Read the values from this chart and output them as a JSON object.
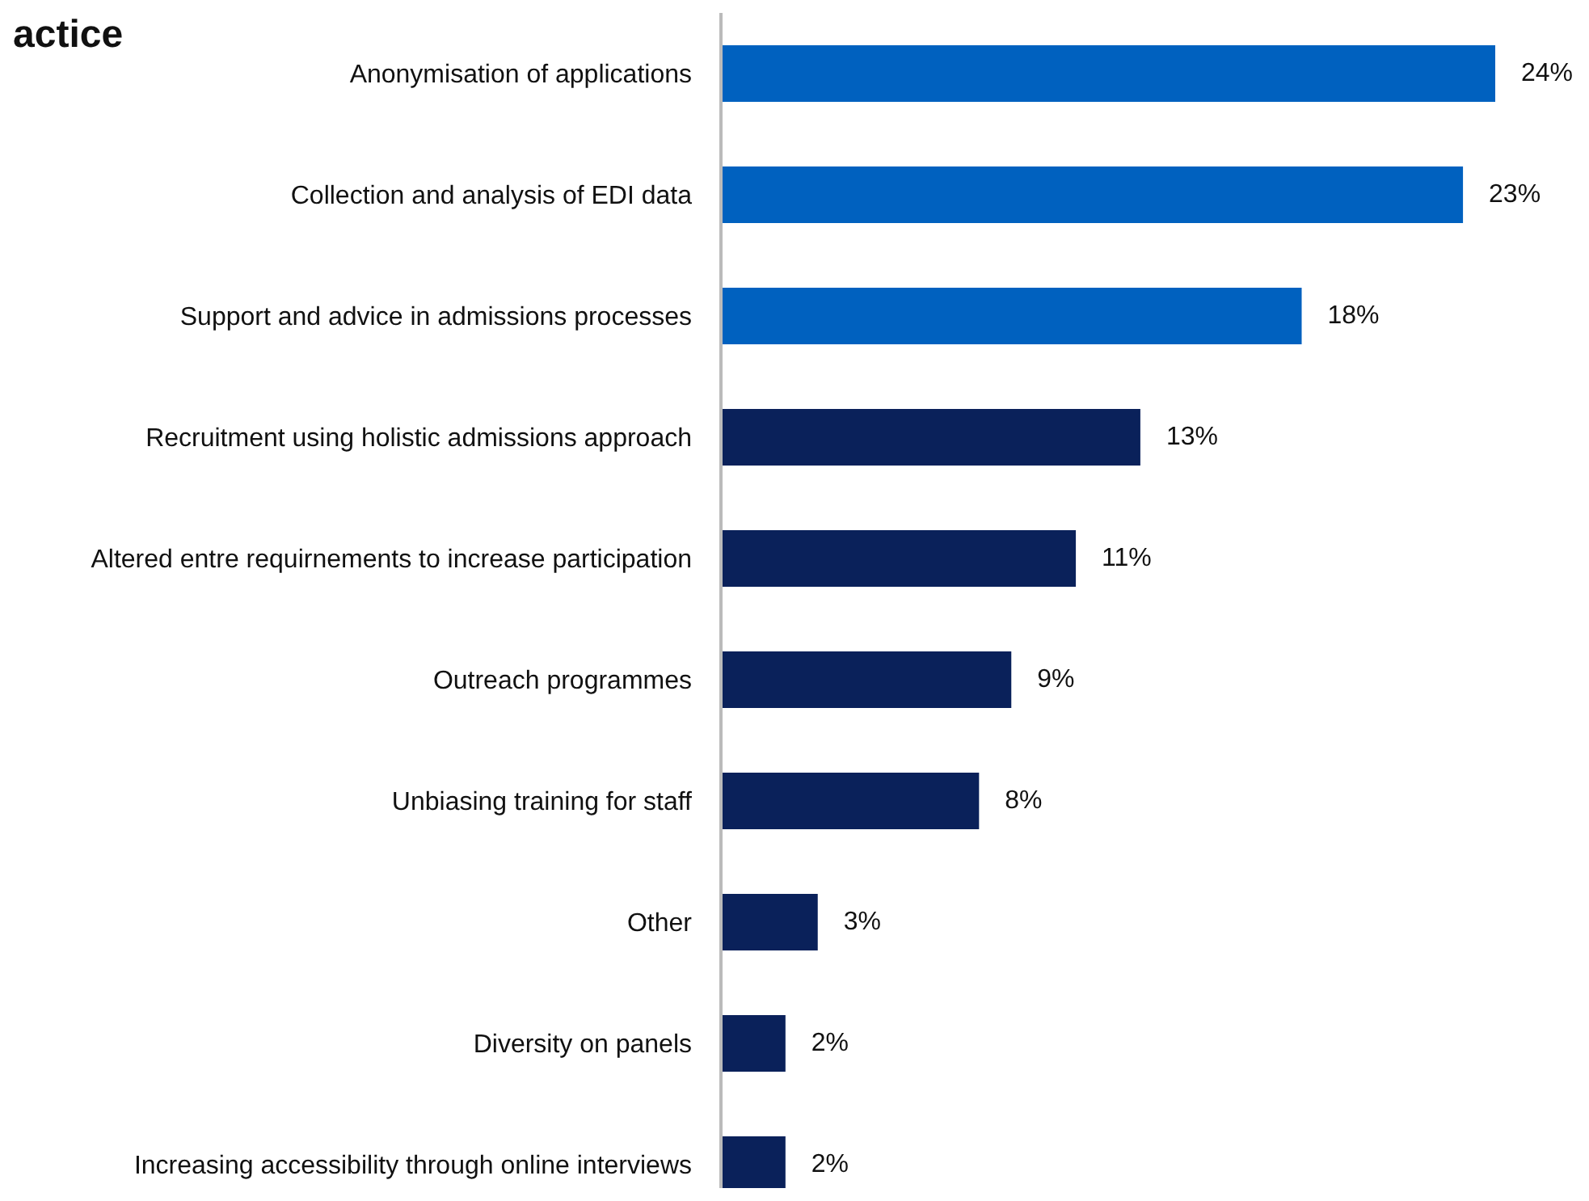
{
  "chart_data": {
    "type": "bar",
    "orientation": "horizontal",
    "title": "actice",
    "categories": [
      "Anonymisation of applications",
      "Collection and analysis of EDI data",
      "Support and advice in admissions processes",
      "Recruitment using holistic admissions approach",
      "Altered entre requirnements to increase participation",
      "Outreach programmes",
      "Unbiasing training for staff",
      "Other",
      "Diversity on panels",
      "Increasing accessibility through online interviews"
    ],
    "values": [
      24,
      23,
      18,
      13,
      11,
      9,
      8,
      3,
      2,
      2
    ],
    "colors": [
      "#0061bf",
      "#0061bf",
      "#0061bf",
      "#0a215a",
      "#0a215a",
      "#0a215a",
      "#0a215a",
      "#0a215a",
      "#0a215a",
      "#0a215a"
    ],
    "value_labels": [
      "24%",
      "23%",
      "18%",
      "13%",
      "11%",
      "9%",
      "8%",
      "3%",
      "2%",
      "2%"
    ],
    "grid": false,
    "legend": false
  }
}
